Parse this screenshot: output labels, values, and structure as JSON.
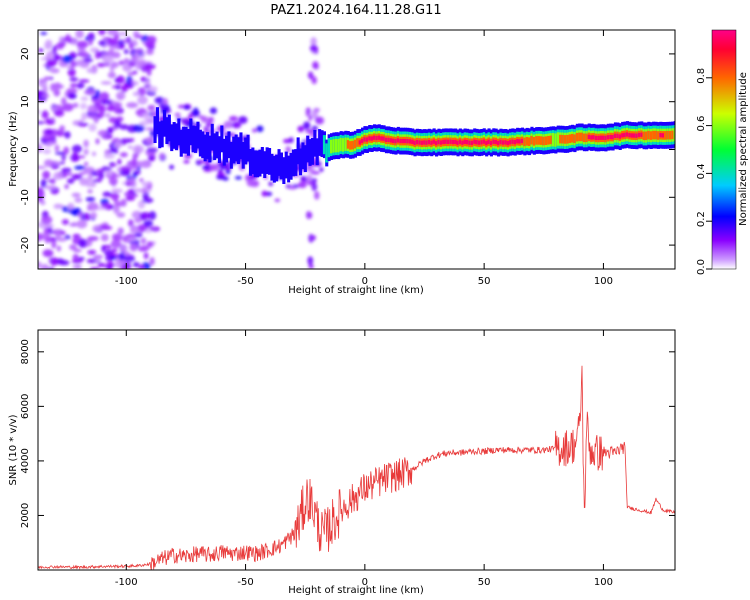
{
  "figure": {
    "title": "PAZ1.2024.164.11.28.G11"
  },
  "chart_data": [
    {
      "type": "heatmap",
      "title": "PAZ1.2024.164.11.28.G11",
      "xlabel": "Height of straight line (km)",
      "ylabel": "Frequency (Hz)",
      "xlim": [
        -137,
        130
      ],
      "ylim": [
        -25,
        25
      ],
      "xticks": [
        -100,
        -50,
        0,
        50,
        100
      ],
      "yticks": [
        -20,
        -10,
        0,
        10,
        20
      ],
      "colorbar": {
        "label": "Normalized spectral amplitude",
        "range": [
          0,
          1
        ],
        "ticks": [
          0.0,
          0.2,
          0.4,
          0.6,
          0.8
        ],
        "colormap": "gist_rainbow_r"
      },
      "ridge": {
        "x": [
          -88,
          -80,
          -70,
          -60,
          -50,
          -45,
          -40,
          -35,
          -30,
          -25,
          -20,
          -15,
          -10,
          -5,
          0,
          5,
          10,
          20,
          30,
          40,
          50,
          60,
          70,
          80,
          90,
          95,
          100,
          110,
          120,
          125,
          130
        ],
        "y": [
          5,
          3,
          2,
          1,
          -1,
          -2,
          -3,
          -4,
          -2,
          -1,
          0,
          0.5,
          1,
          1,
          2,
          2.5,
          2,
          1.5,
          1.5,
          1.5,
          1.5,
          1.5,
          1.8,
          2,
          2.5,
          2.5,
          2.5,
          3,
          3,
          3,
          3
        ],
        "amplitude": [
          0.2,
          0.25,
          0.2,
          0.2,
          0.25,
          0.3,
          0.25,
          0.2,
          0.2,
          0.15,
          0.2,
          0.5,
          0.65,
          0.8,
          0.95,
          0.9,
          0.95,
          1.0,
          1.0,
          1.0,
          1.0,
          1.0,
          0.8,
          0.7,
          0.8,
          0.9,
          1.0,
          1.0,
          0.8,
          0.9,
          0.7
        ]
      },
      "noise_region": {
        "x": [
          -137,
          -88
        ],
        "y": [
          -25,
          25
        ],
        "amplitude_max": 0.15
      }
    },
    {
      "type": "line",
      "xlabel": "Height of straight line (km)",
      "ylabel": "SNR (10 * v/v)",
      "xlim": [
        -137,
        130
      ],
      "ylim": [
        0,
        8800
      ],
      "xticks": [
        -100,
        -50,
        0,
        50,
        100
      ],
      "yticks": [
        2000,
        4000,
        6000,
        8000
      ],
      "color": "#e83a3a",
      "series": [
        {
          "x": [
            -137,
            -130,
            -120,
            -110,
            -100,
            -95,
            -90,
            -85,
            -80,
            -75,
            -70,
            -65,
            -60,
            -55,
            -50,
            -45,
            -40,
            -35,
            -30,
            -28,
            -26,
            -24,
            -22,
            -20,
            -18,
            -16,
            -14,
            -12,
            -10,
            -5,
            0,
            5,
            10,
            15,
            20,
            25,
            30,
            35,
            40,
            45,
            50,
            55,
            60,
            65,
            70,
            75,
            80,
            85,
            88,
            90,
            91,
            92,
            93,
            94,
            95,
            96,
            100,
            105,
            108,
            109,
            110,
            115,
            120,
            122,
            125,
            130
          ],
          "y": [
            100,
            120,
            100,
            130,
            140,
            160,
            220,
            400,
            550,
            500,
            600,
            550,
            650,
            600,
            650,
            600,
            750,
            900,
            1300,
            1600,
            2200,
            2700,
            2400,
            1800,
            1300,
            1400,
            1700,
            1900,
            2200,
            2600,
            3000,
            3200,
            3400,
            3500,
            3700,
            4000,
            4200,
            4300,
            4300,
            4350,
            4350,
            4400,
            4400,
            4400,
            4400,
            4400,
            4450,
            4500,
            4600,
            5200,
            7200,
            1800,
            5500,
            4500,
            4400,
            4300,
            4300,
            4300,
            4500,
            4500,
            2300,
            2200,
            2100,
            2600,
            2200,
            2100
          ]
        }
      ]
    }
  ]
}
